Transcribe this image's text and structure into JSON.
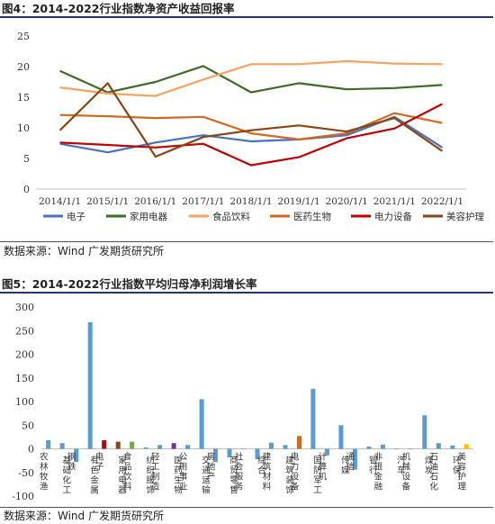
{
  "figure1": {
    "title": "图4：2014-2022行业指数净资产收益回报率",
    "source": "数据来源：Wind  广发期货研究所"
  },
  "figure2": {
    "title": "图5：2014-2022行业指数平均归母净利润增长率",
    "source": "数据来源：Wind  广发期货研究所"
  },
  "chart_data": [
    {
      "type": "line",
      "title": "",
      "x": [
        "2014/1/1",
        "2015/1/1",
        "2016/1/1",
        "2017/1/1",
        "2018/1/1",
        "2019/1/1",
        "2020/1/1",
        "2021/1/1",
        "2022/1/1"
      ],
      "xlabel": "",
      "ylabel": "",
      "ylim": [
        0,
        25
      ],
      "yticks": [
        0,
        5,
        10,
        15,
        20,
        25
      ],
      "legend_position": "bottom",
      "series": [
        {
          "name": "电子",
          "color": "#4472c4",
          "values": [
            7.4,
            6.0,
            7.6,
            8.8,
            7.8,
            8.1,
            8.8,
            11.8,
            6.8
          ]
        },
        {
          "name": "家用电器",
          "color": "#3e6b25",
          "values": [
            19.3,
            15.8,
            17.5,
            20.1,
            15.8,
            17.3,
            16.3,
            16.5,
            17.0
          ]
        },
        {
          "name": "食品饮料",
          "color": "#f4a460",
          "values": [
            16.6,
            15.6,
            15.2,
            17.9,
            20.4,
            20.4,
            20.9,
            20.5,
            20.4
          ]
        },
        {
          "name": "医药生物",
          "color": "#d2691e",
          "values": [
            12.1,
            11.9,
            11.6,
            11.8,
            9.1,
            8.1,
            9.1,
            12.4,
            10.8
          ]
        },
        {
          "name": "电力设备",
          "color": "#c00000",
          "values": [
            7.6,
            7.2,
            6.8,
            7.4,
            3.9,
            5.2,
            8.3,
            9.9,
            13.9
          ]
        },
        {
          "name": "美容护理",
          "color": "#8b4513",
          "values": [
            9.6,
            17.3,
            5.3,
            8.5,
            9.6,
            10.4,
            9.4,
            11.6,
            6.2
          ]
        }
      ]
    },
    {
      "type": "bar",
      "title": "",
      "xlabel": "",
      "ylabel": "",
      "ylim": [
        -100,
        300
      ],
      "yticks": [
        -100,
        -50,
        0,
        50,
        100,
        150,
        200,
        250,
        300
      ],
      "categories": [
        "农林牧渔",
        "基础化工",
        "钢铁",
        "有色金属",
        "电子",
        "家用电器",
        "食品饮料",
        "纺织服饰",
        "轻工制造",
        "医药生物",
        "公用事业",
        "交通运输",
        "房地产",
        "商贸零售",
        "社会服务",
        "综合",
        "建筑材料",
        "建筑装饰",
        "电力设备",
        "国防军工",
        "计算机",
        "传媒",
        "通信",
        "银行",
        "非银金融",
        "汽车",
        "机械设备",
        "煤炭",
        "石油石化",
        "环保",
        "美容护理"
      ],
      "values": [
        18,
        12,
        -28,
        268,
        18,
        15,
        15,
        3,
        8,
        12,
        8,
        105,
        -28,
        -18,
        0,
        -22,
        13,
        8,
        27,
        127,
        -14,
        50,
        -44,
        5,
        9,
        0,
        0,
        71,
        12,
        7,
        10
      ],
      "colors": [
        "#5b9bd5",
        "#5b9bd5",
        "#5b9bd5",
        "#5b9bd5",
        "#c00000",
        "#8b4513",
        "#70ad47",
        "#5b9bd5",
        "#5b9bd5",
        "#7030a0",
        "#5b9bd5",
        "#5b9bd5",
        "#5b9bd5",
        "#5b9bd5",
        "#5b9bd5",
        "#5b9bd5",
        "#5b9bd5",
        "#5b9bd5",
        "#d2691e",
        "#5b9bd5",
        "#5b9bd5",
        "#5b9bd5",
        "#5b9bd5",
        "#5b9bd5",
        "#5b9bd5",
        "#5b9bd5",
        "#5b9bd5",
        "#5b9bd5",
        "#5b9bd5",
        "#5b9bd5",
        "#ffc000"
      ]
    }
  ]
}
